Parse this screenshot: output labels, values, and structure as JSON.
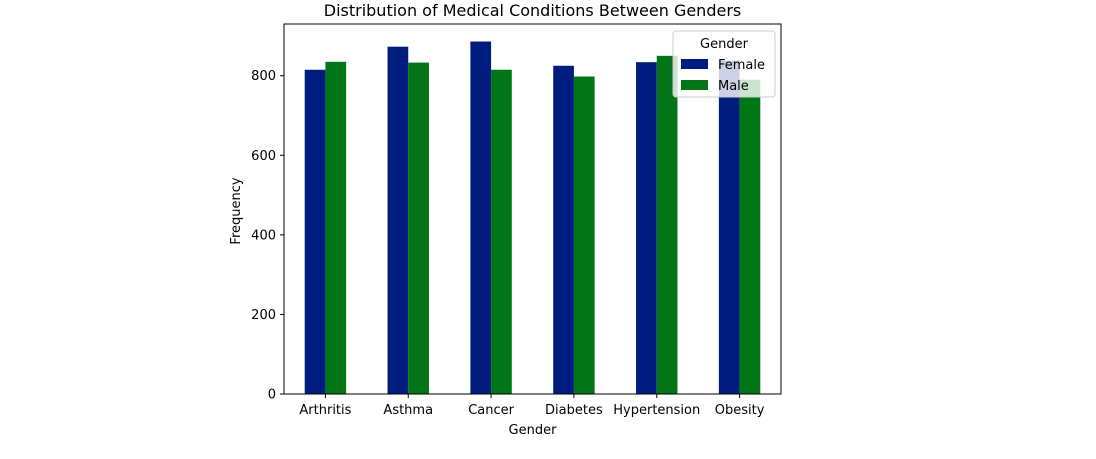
{
  "chart_data": {
    "type": "bar",
    "title": "Distribution of Medical Conditions Between Genders",
    "xlabel": "Gender",
    "ylabel": "Frequency",
    "categories": [
      "Arthritis",
      "Asthma",
      "Cancer",
      "Diabetes",
      "Hypertension",
      "Obesity"
    ],
    "series": [
      {
        "name": "Female",
        "color": "#001c7f",
        "values": [
          815,
          873,
          886,
          825,
          834,
          838
        ]
      },
      {
        "name": "Male",
        "color": "#017517",
        "values": [
          835,
          833,
          815,
          798,
          850,
          790
        ]
      }
    ],
    "ylim": [
      0,
      930
    ],
    "yticks": [
      0,
      200,
      400,
      600,
      800
    ],
    "grid": false,
    "legend": {
      "title": "Gender",
      "placement": "top-right"
    }
  }
}
